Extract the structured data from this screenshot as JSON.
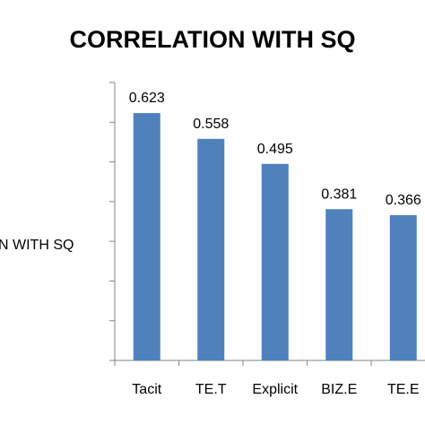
{
  "chart_data": {
    "type": "bar",
    "title": "CORRELATION WITH SQ",
    "ylabel_visible": "N WITH SQ",
    "xlabel": "",
    "categories": [
      "Tacit",
      "TE.T",
      "Explicit",
      "BIZ.E",
      "TE.E"
    ],
    "values": [
      0.623,
      0.558,
      0.495,
      0.381,
      0.366
    ],
    "data_labels": [
      "0.623",
      "0.558",
      "0.495",
      "0.381",
      "0.366"
    ],
    "ylim": [
      0,
      0.7
    ],
    "grid": false,
    "bar_color": "#4f81bd",
    "legend": "none"
  }
}
